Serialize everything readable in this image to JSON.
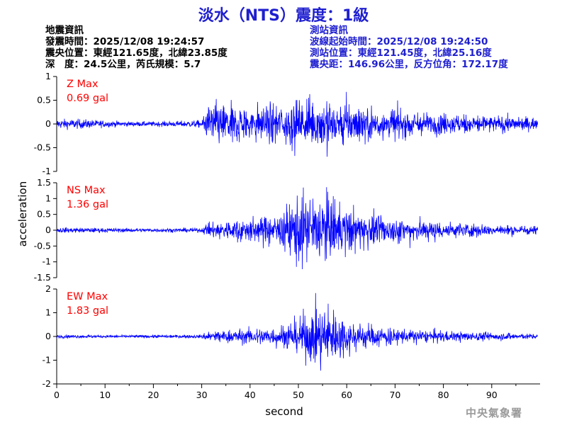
{
  "title": "淡水（NTS）震度：1級",
  "earthquake_info": {
    "heading": "地震資訊",
    "origin_time": "發震時間：2025/12/08 19:24:57",
    "epicenter": "震央位置：東經121.65度，北緯23.85度",
    "depth_magnitude": "深　度：24.5公里，芮氏規模：5.7"
  },
  "station_info": {
    "heading": "測站資訊",
    "waveform_start": "波線起始時間：2025/12/08 19:24:50",
    "location": "測站位置：東經121.45度，北緯25.16度",
    "distance_azimuth": "震央距：146.96公里，反方位角：172.17度"
  },
  "footer": "中央氣象署",
  "colors": {
    "trace": "#0000ff",
    "label": "#ff0000",
    "title": "#1f1fd0",
    "axis": "#000000"
  },
  "chart_data": {
    "type": "line",
    "xlabel": "second",
    "ylabel": "acceleration",
    "xlim": [
      0,
      100
    ],
    "xticks": [
      0,
      10,
      20,
      30,
      40,
      50,
      60,
      70,
      80,
      90
    ],
    "legend": "none",
    "grid": false,
    "panels": [
      {
        "component": "Z",
        "label": "Z Max",
        "max_label": "0.69 gal",
        "peak": 0.69,
        "ylim": [
          -1,
          1
        ],
        "yticks": [
          1,
          0.5,
          0,
          -0.5,
          -1
        ],
        "ytick_labels": [
          "1",
          "0.5",
          "0",
          "-0.5",
          "-1"
        ],
        "envelope": {
          "t": [
            0,
            5,
            10,
            15,
            20,
            25,
            30,
            31,
            35,
            40,
            45,
            50,
            55,
            60,
            65,
            70,
            75,
            80,
            85,
            90,
            95,
            99.5
          ],
          "amp": [
            0.1,
            0.1,
            0.07,
            0.05,
            0.05,
            0.06,
            0.08,
            0.4,
            0.4,
            0.35,
            0.4,
            0.45,
            0.55,
            0.45,
            0.35,
            0.3,
            0.25,
            0.22,
            0.2,
            0.17,
            0.15,
            0.12
          ]
        }
      },
      {
        "component": "NS",
        "label": "NS Max",
        "max_label": "1.36 gal",
        "peak": 1.36,
        "ylim": [
          -1.5,
          1.5
        ],
        "yticks": [
          1.5,
          1,
          0.5,
          0,
          -0.5,
          -1,
          -1.5
        ],
        "ytick_labels": [
          "1.5",
          "1",
          "0.5",
          "0",
          "-0.5",
          "-1",
          "-1.5"
        ],
        "envelope": {
          "t": [
            0,
            10,
            20,
            30,
            31,
            35,
            40,
            45,
            48,
            50,
            53,
            55,
            58,
            60,
            65,
            70,
            75,
            80,
            85,
            90,
            95,
            99.5
          ],
          "amp": [
            0.1,
            0.08,
            0.07,
            0.08,
            0.25,
            0.35,
            0.45,
            0.55,
            0.9,
            1.2,
            1.3,
            1.3,
            1.1,
            0.8,
            0.6,
            0.45,
            0.4,
            0.3,
            0.25,
            0.2,
            0.17,
            0.15
          ]
        }
      },
      {
        "component": "EW",
        "label": "EW Max",
        "max_label": "1.83 gal",
        "peak": 1.83,
        "ylim": [
          -2,
          2
        ],
        "yticks": [
          2,
          1,
          0,
          -1,
          -2
        ],
        "ytick_labels": [
          "2",
          "1",
          "0",
          "-1",
          "-2"
        ],
        "envelope": {
          "t": [
            0,
            10,
            20,
            30,
            31,
            35,
            40,
            45,
            50,
            53,
            55,
            57,
            60,
            65,
            70,
            75,
            80,
            85,
            90,
            95,
            99.5
          ],
          "amp": [
            0.08,
            0.07,
            0.07,
            0.08,
            0.25,
            0.3,
            0.35,
            0.45,
            0.8,
            1.3,
            1.5,
            1.3,
            0.8,
            0.5,
            0.4,
            0.3,
            0.25,
            0.22,
            0.2,
            0.15,
            0.12
          ]
        }
      }
    ]
  }
}
